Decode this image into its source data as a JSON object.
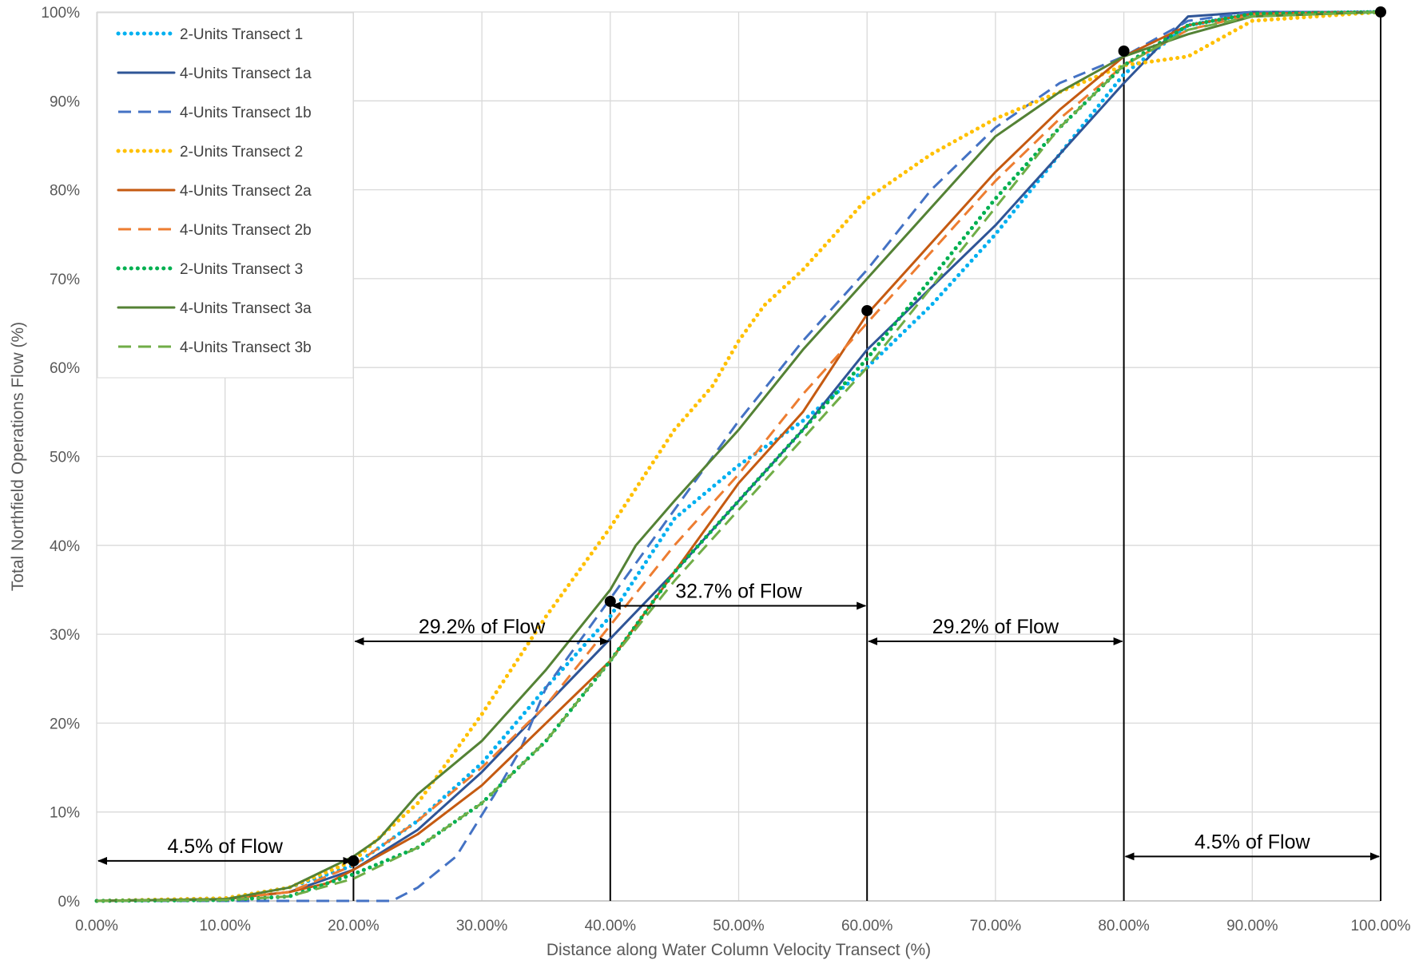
{
  "chart_data": {
    "type": "line",
    "title": "",
    "xlabel": "Distance along Water Column Velocity Transect (%)",
    "ylabel": "Total Northfield Operations Flow (%)",
    "xlim": [
      0,
      100
    ],
    "ylim": [
      0,
      100
    ],
    "x_ticks": [
      "0.00%",
      "10.00%",
      "20.00%",
      "30.00%",
      "40.00%",
      "50.00%",
      "60.00%",
      "70.00%",
      "80.00%",
      "90.00%",
      "100.00%"
    ],
    "y_ticks": [
      "0%",
      "10%",
      "20%",
      "30%",
      "40%",
      "50%",
      "60%",
      "70%",
      "80%",
      "90%",
      "100%"
    ],
    "grid": true,
    "legend_position": "top-left",
    "series": [
      {
        "name": "2-Units Transect 1",
        "color": "#00B0F0",
        "dash": "dot",
        "points": [
          [
            0,
            0
          ],
          [
            10,
            0.3
          ],
          [
            15,
            1.5
          ],
          [
            20,
            4
          ],
          [
            25,
            9
          ],
          [
            30,
            15.5
          ],
          [
            35,
            24
          ],
          [
            40,
            32
          ],
          [
            45,
            43
          ],
          [
            50,
            49
          ],
          [
            55,
            54
          ],
          [
            60,
            60
          ],
          [
            65,
            67
          ],
          [
            70,
            75
          ],
          [
            75,
            84
          ],
          [
            80,
            93
          ],
          [
            85,
            98.5
          ],
          [
            90,
            99.8
          ],
          [
            100,
            100
          ]
        ]
      },
      {
        "name": "4-Units Transect 1a",
        "color": "#2F5597",
        "dash": "solid",
        "points": [
          [
            0,
            0
          ],
          [
            10,
            0.2
          ],
          [
            15,
            1
          ],
          [
            20,
            3.5
          ],
          [
            25,
            8
          ],
          [
            30,
            14.5
          ],
          [
            35,
            22
          ],
          [
            40,
            29.5
          ],
          [
            45,
            37
          ],
          [
            50,
            45
          ],
          [
            55,
            53
          ],
          [
            60,
            62
          ],
          [
            65,
            69
          ],
          [
            70,
            76
          ],
          [
            75,
            84
          ],
          [
            80,
            92
          ],
          [
            85,
            99.5
          ],
          [
            90,
            100
          ],
          [
            100,
            100
          ]
        ]
      },
      {
        "name": "4-Units Transect 1b",
        "color": "#4472C4",
        "dash": "dash",
        "points": [
          [
            0,
            0
          ],
          [
            10,
            0
          ],
          [
            15,
            0
          ],
          [
            20,
            0
          ],
          [
            23,
            0
          ],
          [
            25,
            1.5
          ],
          [
            28,
            5
          ],
          [
            31,
            12
          ],
          [
            33,
            17
          ],
          [
            35,
            24
          ],
          [
            40,
            34
          ],
          [
            45,
            44
          ],
          [
            50,
            54
          ],
          [
            55,
            63
          ],
          [
            60,
            71
          ],
          [
            65,
            80
          ],
          [
            70,
            87
          ],
          [
            75,
            92
          ],
          [
            80,
            95
          ],
          [
            85,
            99
          ],
          [
            90,
            100
          ],
          [
            100,
            100
          ]
        ]
      },
      {
        "name": "2-Units Transect 2",
        "color": "#FFC000",
        "dash": "dot",
        "points": [
          [
            0,
            0
          ],
          [
            10,
            0.3
          ],
          [
            15,
            1.5
          ],
          [
            20,
            4.5
          ],
          [
            25,
            11
          ],
          [
            30,
            21
          ],
          [
            35,
            32
          ],
          [
            40,
            42
          ],
          [
            45,
            53
          ],
          [
            48,
            58
          ],
          [
            50,
            63
          ],
          [
            52,
            67
          ],
          [
            55,
            71
          ],
          [
            60,
            79
          ],
          [
            65,
            84
          ],
          [
            70,
            88
          ],
          [
            75,
            91
          ],
          [
            80,
            94
          ],
          [
            85,
            95
          ],
          [
            90,
            99
          ],
          [
            100,
            100
          ]
        ]
      },
      {
        "name": "4-Units Transect 2a",
        "color": "#C55A11",
        "dash": "solid",
        "points": [
          [
            0,
            0
          ],
          [
            10,
            0.2
          ],
          [
            15,
            1
          ],
          [
            18,
            2
          ],
          [
            20,
            3.5
          ],
          [
            25,
            7.5
          ],
          [
            30,
            13
          ],
          [
            35,
            20
          ],
          [
            40,
            27
          ],
          [
            45,
            37
          ],
          [
            50,
            47
          ],
          [
            55,
            55
          ],
          [
            60,
            66
          ],
          [
            65,
            74
          ],
          [
            70,
            82
          ],
          [
            75,
            89
          ],
          [
            80,
            95
          ],
          [
            85,
            98.5
          ],
          [
            90,
            99.8
          ],
          [
            100,
            100
          ]
        ]
      },
      {
        "name": "4-Units Transect 2b",
        "color": "#ED7D31",
        "dash": "dash",
        "points": [
          [
            0,
            0
          ],
          [
            10,
            0.2
          ],
          [
            15,
            1
          ],
          [
            20,
            4
          ],
          [
            25,
            9
          ],
          [
            30,
            15
          ],
          [
            35,
            22
          ],
          [
            40,
            31
          ],
          [
            45,
            40
          ],
          [
            50,
            48
          ],
          [
            55,
            57
          ],
          [
            60,
            65
          ],
          [
            65,
            73
          ],
          [
            70,
            81
          ],
          [
            75,
            88
          ],
          [
            80,
            94
          ],
          [
            85,
            98
          ],
          [
            90,
            99.7
          ],
          [
            100,
            100
          ]
        ]
      },
      {
        "name": "2-Units Transect 3",
        "color": "#00B050",
        "dash": "dot",
        "points": [
          [
            0,
            0
          ],
          [
            10,
            0.1
          ],
          [
            15,
            0.5
          ],
          [
            20,
            3
          ],
          [
            25,
            6
          ],
          [
            30,
            11
          ],
          [
            35,
            18
          ],
          [
            40,
            27
          ],
          [
            45,
            37
          ],
          [
            50,
            45
          ],
          [
            55,
            53
          ],
          [
            60,
            61
          ],
          [
            65,
            70
          ],
          [
            70,
            79
          ],
          [
            75,
            87
          ],
          [
            80,
            94
          ],
          [
            85,
            98.5
          ],
          [
            90,
            99.8
          ],
          [
            100,
            100
          ]
        ]
      },
      {
        "name": "4-Units Transect 3a",
        "color": "#548235",
        "dash": "solid",
        "points": [
          [
            0,
            0
          ],
          [
            10,
            0.2
          ],
          [
            15,
            1.5
          ],
          [
            20,
            5
          ],
          [
            22,
            7
          ],
          [
            25,
            12
          ],
          [
            30,
            18
          ],
          [
            35,
            26
          ],
          [
            40,
            35
          ],
          [
            42,
            40
          ],
          [
            45,
            45
          ],
          [
            50,
            53
          ],
          [
            55,
            62
          ],
          [
            60,
            70
          ],
          [
            65,
            78
          ],
          [
            70,
            86
          ],
          [
            75,
            91
          ],
          [
            80,
            95
          ],
          [
            85,
            97.5
          ],
          [
            90,
            99.5
          ],
          [
            100,
            100
          ]
        ]
      },
      {
        "name": "4-Units Transect 3b",
        "color": "#70AD47",
        "dash": "dash",
        "points": [
          [
            0,
            0
          ],
          [
            10,
            0.1
          ],
          [
            15,
            0.5
          ],
          [
            20,
            2.5
          ],
          [
            25,
            6
          ],
          [
            30,
            11
          ],
          [
            35,
            18
          ],
          [
            40,
            27
          ],
          [
            45,
            36
          ],
          [
            50,
            44
          ],
          [
            55,
            52
          ],
          [
            60,
            60
          ],
          [
            65,
            69
          ],
          [
            70,
            78
          ],
          [
            75,
            87
          ],
          [
            80,
            94
          ],
          [
            85,
            98
          ],
          [
            90,
            99.5
          ],
          [
            100,
            100
          ]
        ]
      }
    ],
    "markers": [
      {
        "x": 20,
        "y": 4.5
      },
      {
        "x": 40,
        "y": 33.7
      },
      {
        "x": 60,
        "y": 66.4
      },
      {
        "x": 80,
        "y": 95.6
      },
      {
        "x": 100,
        "y": 100
      }
    ],
    "annotations": [
      {
        "text": "4.5% of Flow",
        "x_from": 0,
        "x_to": 20,
        "y": 4.5
      },
      {
        "text": "29.2% of Flow",
        "x_from": 20,
        "x_to": 40,
        "y": 29.2
      },
      {
        "text": "32.7% of Flow",
        "x_from": 40,
        "x_to": 60,
        "y": 33.2
      },
      {
        "text": "29.2% of Flow",
        "x_from": 60,
        "x_to": 80,
        "y": 29.2
      },
      {
        "text": "4.5% of Flow",
        "x_from": 80,
        "x_to": 100,
        "y": 5
      }
    ]
  }
}
